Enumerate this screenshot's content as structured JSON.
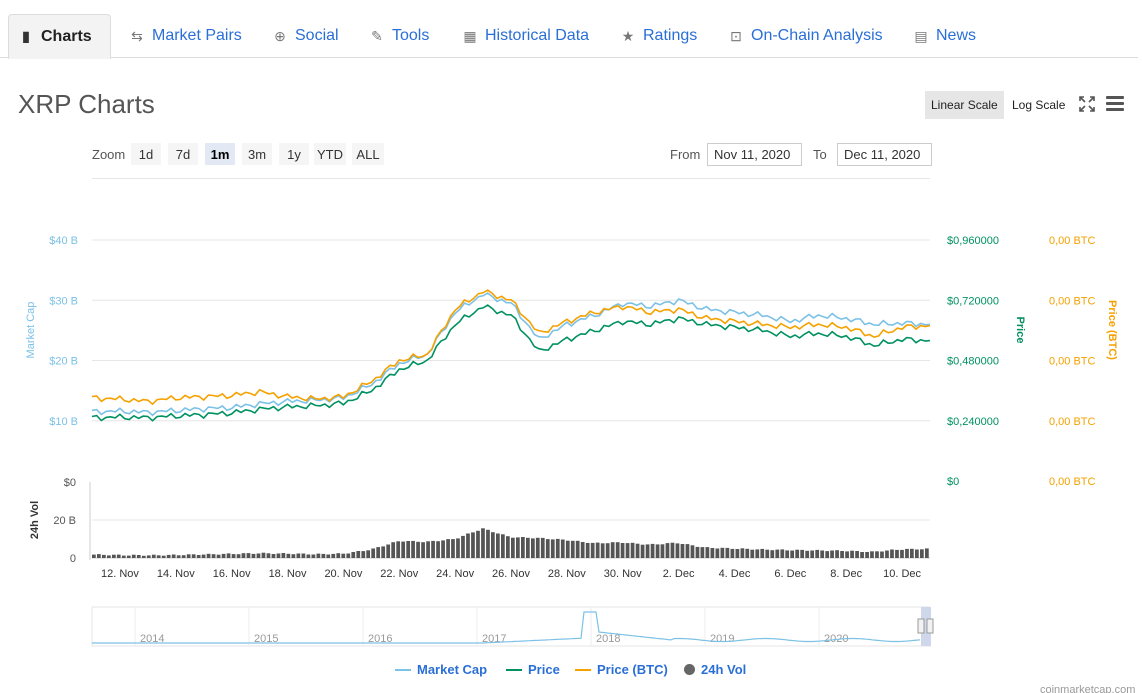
{
  "tabs": [
    {
      "label": "Charts",
      "icon": "bar-chart-icon",
      "active": true
    },
    {
      "label": "Market Pairs",
      "icon": "swap-arrows-icon"
    },
    {
      "label": "Social",
      "icon": "globe-icon"
    },
    {
      "label": "Tools",
      "icon": "wrench-icon"
    },
    {
      "label": "Historical Data",
      "icon": "calendar-icon"
    },
    {
      "label": "Ratings",
      "icon": "star-icon"
    },
    {
      "label": "On-Chain Analysis",
      "icon": "analysis-icon"
    },
    {
      "label": "News",
      "icon": "news-icon"
    }
  ],
  "title": "XRP Charts",
  "scale": {
    "linear": "Linear Scale",
    "log": "Log Scale",
    "active": "linear"
  },
  "zoom": {
    "label": "Zoom",
    "options": [
      "1d",
      "7d",
      "1m",
      "3m",
      "1y",
      "YTD",
      "ALL"
    ],
    "active": "1m"
  },
  "range": {
    "from_label": "From",
    "from": "Nov 11, 2020",
    "to_label": "To",
    "to": "Dec 11, 2020"
  },
  "colors": {
    "market_cap": "#7cc1e6",
    "price": "#009160",
    "price_btc": "#f5a100",
    "volume": "#555555",
    "link": "#2a6fd6"
  },
  "chart_data": {
    "type": "line",
    "x": [
      "Nov 11",
      "Nov 12",
      "Nov 13",
      "Nov 14",
      "Nov 15",
      "Nov 16",
      "Nov 17",
      "Nov 18",
      "Nov 19",
      "Nov 20",
      "Nov 21",
      "Nov 22",
      "Nov 23",
      "Nov 24",
      "Nov 25",
      "Nov 26",
      "Nov 27",
      "Nov 28",
      "Nov 29",
      "Nov 30",
      "Dec 1",
      "Dec 2",
      "Dec 3",
      "Dec 4",
      "Dec 5",
      "Dec 6",
      "Dec 7",
      "Dec 8",
      "Dec 9",
      "Dec 10",
      "Dec 11"
    ],
    "x_ticks": [
      "12. Nov",
      "14. Nov",
      "16. Nov",
      "18. Nov",
      "20. Nov",
      "22. Nov",
      "24. Nov",
      "26. Nov",
      "28. Nov",
      "30. Nov",
      "2. Dec",
      "4. Dec",
      "6. Dec",
      "8. Dec",
      "10. Dec"
    ],
    "series": [
      {
        "name": "Market Cap",
        "axis": "left",
        "values": [
          11.5,
          11.6,
          11.4,
          11.7,
          12.0,
          12.2,
          12.8,
          13.2,
          13.4,
          13.8,
          16.0,
          19.5,
          21.0,
          28.0,
          31.0,
          29.5,
          23.5,
          26.0,
          27.5,
          29.5,
          29.0,
          30.0,
          28.5,
          28.0,
          27.5,
          26.5,
          27.5,
          27.0,
          26.0,
          26.2,
          26.0
        ]
      },
      {
        "name": "Price",
        "axis": "left",
        "values": [
          10.5,
          10.6,
          10.5,
          10.8,
          11.0,
          11.3,
          11.9,
          12.3,
          12.5,
          12.9,
          15.0,
          18.5,
          20.0,
          26.0,
          29.0,
          27.5,
          21.5,
          23.5,
          25.0,
          26.5,
          26.0,
          27.0,
          26.0,
          25.5,
          25.0,
          24.0,
          24.5,
          24.0,
          22.5,
          23.5,
          23.3
        ]
      },
      {
        "name": "Price (BTC)",
        "axis": "left",
        "values": [
          13.8,
          13.6,
          13.2,
          13.8,
          14.0,
          14.2,
          14.8,
          14.0,
          13.6,
          14.0,
          16.5,
          20.0,
          21.0,
          28.5,
          31.5,
          30.0,
          24.5,
          26.5,
          28.0,
          29.0,
          28.0,
          28.5,
          27.0,
          26.5,
          26.0,
          25.5,
          26.0,
          25.5,
          24.0,
          25.5,
          25.8
        ]
      },
      {
        "name": "24h Vol",
        "axis": "volume",
        "values": [
          1.8,
          1.5,
          1.4,
          1.6,
          1.9,
          2.2,
          2.5,
          2.3,
          2.0,
          2.3,
          4.5,
          9.0,
          8.5,
          10.0,
          15.5,
          11.0,
          10.5,
          9.5,
          7.8,
          8.2,
          7.0,
          8.0,
          5.5,
          5.0,
          4.5,
          4.2,
          4.0,
          3.8,
          3.2,
          4.5,
          4.8
        ]
      }
    ],
    "left_axis": {
      "title": "Market Cap",
      "ticks": [
        "$10 B",
        "$20 B",
        "$30 B",
        "$40 B"
      ],
      "values": [
        10,
        20,
        30,
        40
      ]
    },
    "right_axis_price": {
      "title": "Price",
      "ticks": [
        "$0",
        "$0,240000",
        "$0,480000",
        "$0,720000",
        "$0,960000"
      ]
    },
    "right_axis_btc": {
      "title": "Price (BTC)",
      "ticks": [
        "0,00 BTC",
        "0,00 BTC",
        "0,00 BTC",
        "0,00 BTC",
        "0,00 BTC"
      ]
    },
    "volume_axis": {
      "title": "24h Vol",
      "ticks": [
        "$0",
        "20 B",
        "0"
      ]
    },
    "navigator_years": [
      "2014",
      "2015",
      "2016",
      "2017",
      "2018",
      "2019",
      "2020"
    ],
    "grid": true,
    "legend_position": "bottom"
  },
  "legend": [
    "Market Cap",
    "Price",
    "Price (BTC)",
    "24h Vol"
  ],
  "credit": "coinmarketcap.com"
}
